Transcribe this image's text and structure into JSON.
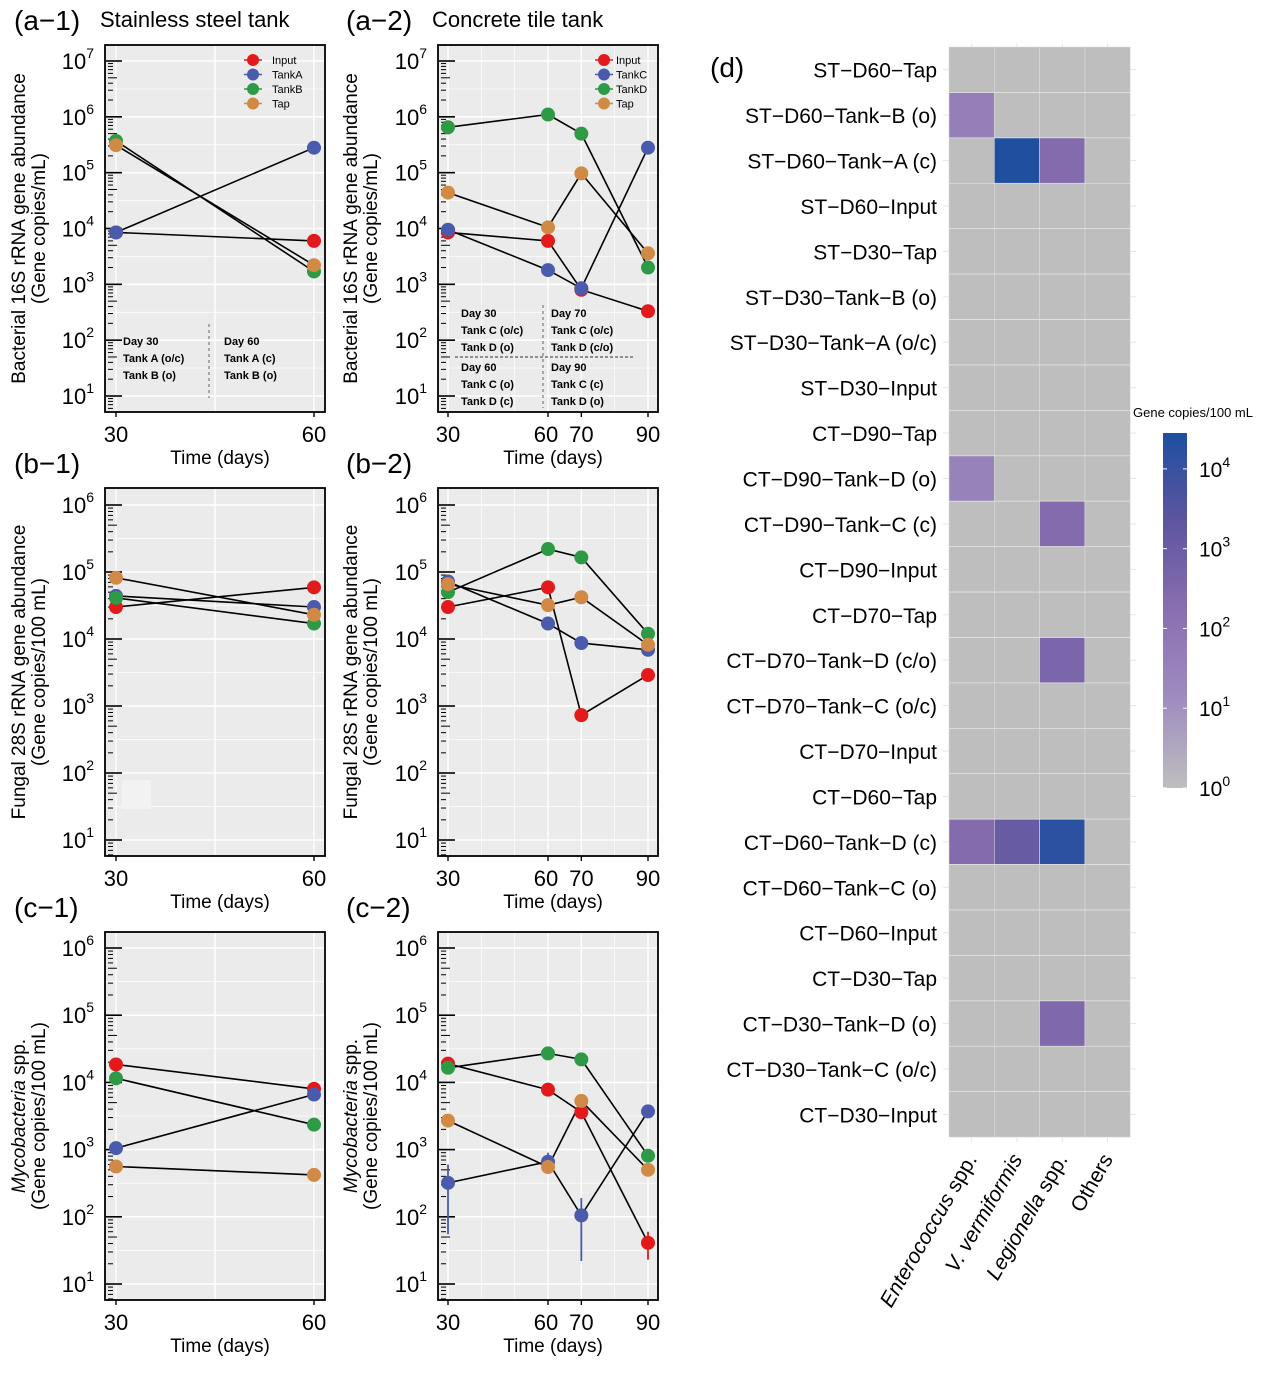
{
  "chart_data": [
    {
      "id": "a1",
      "type": "line",
      "panel_label": "(a−1)",
      "title": "Stainless steel tank",
      "xlabel": "Time (days)",
      "ylabel": [
        "Bacterial 16S rRNA gene abundance",
        "(Gene copies/mL)"
      ],
      "ylabel_italic_prefix": "",
      "yscale": "log",
      "ylim": [
        1,
        7
      ],
      "yticks": [
        1,
        2,
        3,
        4,
        5,
        6,
        7
      ],
      "x": [
        30,
        60
      ],
      "xlim": [
        28.5,
        61.5
      ],
      "grid": true,
      "legend": {
        "position": "top-right",
        "entries": [
          "Input",
          "TankA",
          "TankB",
          "Tap"
        ]
      },
      "series": [
        {
          "name": "Input",
          "color": "#e31a1c",
          "values": [
            8500,
            6000
          ]
        },
        {
          "name": "TankA",
          "color": "#4a5aad",
          "values": [
            8500,
            280000
          ]
        },
        {
          "name": "TankB",
          "color": "#2e9a45",
          "values": [
            370000,
            1700
          ]
        },
        {
          "name": "Tap",
          "color": "#d08a45",
          "values": [
            310000,
            2200
          ]
        }
      ],
      "annotations": [
        {
          "lines": [
            "Day 30",
            "Tank A (o/c)",
            "Tank B (o)"
          ]
        },
        {
          "lines": [
            "Day 60",
            "Tank A (c)",
            "Tank B (o)"
          ]
        }
      ]
    },
    {
      "id": "a2",
      "type": "line",
      "panel_label": "(a−2)",
      "title": "Concrete tile tank",
      "xlabel": "Time (days)",
      "ylabel": [
        "Bacterial 16S rRNA gene abundance",
        "(Gene copies/mL)"
      ],
      "yscale": "log",
      "ylim": [
        1,
        7
      ],
      "yticks": [
        1,
        2,
        3,
        4,
        5,
        6,
        7
      ],
      "x": [
        30,
        60,
        70,
        90
      ],
      "xlim": [
        28.5,
        91.5
      ],
      "grid": true,
      "legend": {
        "position": "top-right",
        "entries": [
          "Input",
          "TankC",
          "TankD",
          "Tap"
        ]
      },
      "series": [
        {
          "name": "Input",
          "color": "#e31a1c",
          "values": [
            8500,
            6000,
            800,
            330
          ]
        },
        {
          "name": "TankC",
          "color": "#4a5aad",
          "values": [
            9500,
            1800,
            850,
            280000
          ]
        },
        {
          "name": "TankD",
          "color": "#2e9a45",
          "values": [
            650000,
            1100000,
            500000,
            2000
          ]
        },
        {
          "name": "Tap",
          "color": "#d08a45",
          "values": [
            44000,
            10500,
            97000,
            3600
          ]
        }
      ],
      "annotations": [
        {
          "lines": [
            "Day 30",
            "Tank C (o/c)",
            "Tank D (o)"
          ]
        },
        {
          "lines": [
            "Day 70",
            "Tank C (o/c)",
            "Tank D (c/o)"
          ]
        },
        {
          "lines": [
            "Day 60",
            "Tank C (o)",
            "Tank D (c)"
          ]
        },
        {
          "lines": [
            "Day 90",
            "Tank C (c)",
            "Tank D (o)"
          ]
        }
      ]
    },
    {
      "id": "b1",
      "type": "line",
      "panel_label": "(b−1)",
      "title": "",
      "xlabel": "Time (days)",
      "ylabel": [
        "Fungal 28S rRNA gene abundance",
        "(Gene copies/100 mL)"
      ],
      "yscale": "log",
      "ylim": [
        1,
        6
      ],
      "yticks": [
        1,
        2,
        3,
        4,
        5,
        6
      ],
      "x": [
        30,
        60
      ],
      "xlim": [
        28.5,
        61.5
      ],
      "grid": true,
      "series": [
        {
          "name": "Input",
          "color": "#e31a1c",
          "values": [
            30000,
            59000
          ]
        },
        {
          "name": "TankA",
          "color": "#4a5aad",
          "values": [
            44000,
            30000
          ]
        },
        {
          "name": "TankB",
          "color": "#2e9a45",
          "values": [
            41000,
            17000
          ]
        },
        {
          "name": "Tap",
          "color": "#d08a45",
          "values": [
            82000,
            23000
          ]
        }
      ]
    },
    {
      "id": "b2",
      "type": "line",
      "panel_label": "(b−2)",
      "title": "",
      "xlabel": "Time (days)",
      "ylabel": [
        "Fungal 28S rRNA gene abundance",
        "(Gene copies/100 mL)"
      ],
      "yscale": "log",
      "ylim": [
        1,
        6
      ],
      "yticks": [
        1,
        2,
        3,
        4,
        5,
        6
      ],
      "x": [
        30,
        60,
        70,
        90
      ],
      "xlim": [
        28.5,
        91.5
      ],
      "grid": true,
      "series": [
        {
          "name": "Input",
          "color": "#e31a1c",
          "values": [
            30000,
            59000,
            730,
            2900
          ]
        },
        {
          "name": "TankC",
          "color": "#4a5aad",
          "values": [
            72000,
            17000,
            8700,
            6900
          ]
        },
        {
          "name": "TankD",
          "color": "#2e9a45",
          "values": [
            50000,
            220000,
            165000,
            12000
          ]
        },
        {
          "name": "Tap",
          "color": "#d08a45",
          "values": [
            66000,
            32000,
            42000,
            8200
          ]
        }
      ]
    },
    {
      "id": "c1",
      "type": "line",
      "panel_label": "(c−1)",
      "title": "",
      "xlabel": "Time (days)",
      "ylabel": [
        "Mycobacteria spp.",
        "(Gene copies/100 mL)"
      ],
      "ylabel_italic_word": "Mycobacteria",
      "yscale": "log",
      "ylim": [
        1,
        6
      ],
      "yticks": [
        1,
        2,
        3,
        4,
        5,
        6
      ],
      "x": [
        30,
        60
      ],
      "xlim": [
        28.5,
        61.5
      ],
      "grid": true,
      "series": [
        {
          "name": "Input",
          "color": "#e31a1c",
          "values": [
            18500,
            8000
          ]
        },
        {
          "name": "TankA",
          "color": "#4a5aad",
          "values": [
            1050,
            6600
          ]
        },
        {
          "name": "TankB",
          "color": "#2e9a45",
          "values": [
            11500,
            2350
          ]
        },
        {
          "name": "Tap",
          "color": "#d08a45",
          "values": [
            560,
            420
          ]
        }
      ]
    },
    {
      "id": "c2",
      "type": "line",
      "panel_label": "(c−2)",
      "title": "",
      "xlabel": "Time (days)",
      "ylabel": [
        "Mycobacteria spp.",
        "(Gene copies/100 mL)"
      ],
      "ylabel_italic_word": "Mycobacteria",
      "yscale": "log",
      "ylim": [
        1,
        6
      ],
      "yticks": [
        1,
        2,
        3,
        4,
        5,
        6
      ],
      "x": [
        30,
        60,
        70,
        90
      ],
      "xlim": [
        28.5,
        91.5
      ],
      "grid": true,
      "series": [
        {
          "name": "Input",
          "color": "#e31a1c",
          "values": [
            19000,
            7800,
            3600,
            41
          ],
          "error_low": [
            null,
            null,
            null,
            23
          ],
          "error_high": [
            null,
            null,
            null,
            60
          ]
        },
        {
          "name": "TankC",
          "color": "#4a5aad",
          "values": [
            320,
            660,
            105,
            3700
          ],
          "error_low": [
            55,
            450,
            22,
            null
          ],
          "error_high": [
            600,
            900,
            190,
            null
          ]
        },
        {
          "name": "TankD",
          "color": "#2e9a45",
          "values": [
            16500,
            27000,
            22000,
            810
          ]
        },
        {
          "name": "Tap",
          "color": "#d08a45",
          "values": [
            2700,
            550,
            5300,
            500
          ]
        }
      ]
    },
    {
      "id": "d",
      "type": "heatmap",
      "panel_label": "(d)",
      "title": "",
      "rows": [
        "ST−D60−Tap",
        "ST−D60−Tank−B (o)",
        "ST−D60−Tank−A (c)",
        "ST−D60−Input",
        "ST−D30−Tap",
        "ST−D30−Tank−B (o)",
        "ST−D30−Tank−A (o/c)",
        "ST−D30−Input",
        "CT−D90−Tap",
        "CT−D90−Tank−D (o)",
        "CT−D90−Tank−C (c)",
        "CT−D90−Input",
        "CT−D70−Tap",
        "CT−D70−Tank−D (c/o)",
        "CT−D70−Tank−C (o/c)",
        "CT−D70−Input",
        "CT−D60−Tap",
        "CT−D60−Tank−D (c)",
        "CT−D60−Tank−C (o)",
        "CT−D60−Input",
        "CT−D30−Tap",
        "CT−D30−Tank−D (o)",
        "CT−D30−Tank−C (o/c)",
        "CT−D30−Input"
      ],
      "columns": [
        "Enterococcus spp.",
        "V. vermiformis",
        "Legionella spp.",
        "Others"
      ],
      "columns_italic_part": [
        "Enterococcus",
        "V. vermiformis",
        "Legionella",
        ""
      ],
      "values_log10": [
        [
          0,
          0,
          0,
          0
        ],
        [
          1.6,
          0,
          0,
          0
        ],
        [
          0,
          4.4,
          2.4,
          0
        ],
        [
          0,
          0,
          0,
          0
        ],
        [
          0,
          0,
          0,
          0
        ],
        [
          0,
          0,
          0,
          0
        ],
        [
          0,
          0,
          0,
          0
        ],
        [
          0,
          0,
          0,
          0
        ],
        [
          0,
          0,
          0,
          0
        ],
        [
          1.5,
          0,
          0,
          0
        ],
        [
          0,
          0,
          2.4,
          0
        ],
        [
          0,
          0,
          0,
          0
        ],
        [
          0,
          0,
          0,
          0
        ],
        [
          0,
          0,
          2.6,
          0
        ],
        [
          0,
          0,
          0,
          0
        ],
        [
          0,
          0,
          0,
          0
        ],
        [
          0,
          0,
          0,
          0
        ],
        [
          2.4,
          3.1,
          4.2,
          0
        ],
        [
          0,
          0,
          0,
          0
        ],
        [
          0,
          0,
          0,
          0
        ],
        [
          0,
          0,
          0,
          0
        ],
        [
          0,
          0,
          2.5,
          0
        ],
        [
          0,
          0,
          0,
          0
        ],
        [
          0,
          0,
          0,
          0
        ]
      ],
      "colorbar": {
        "title": "Gene copies/100 mL",
        "scale": "log",
        "range_log10": [
          0,
          4.45
        ],
        "ticks_log10": [
          0,
          1,
          2,
          3,
          4
        ],
        "colors": [
          "#bebebe",
          "#9f8cc0",
          "#8a6fb0",
          "#5e55a0",
          "#1e4fa0"
        ]
      }
    }
  ]
}
